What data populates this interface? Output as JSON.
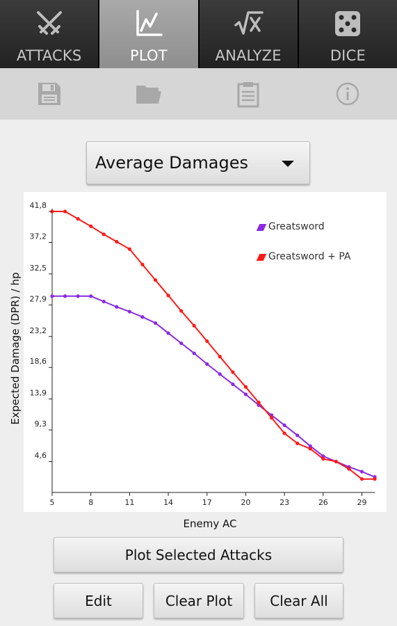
{
  "tabs": [
    {
      "label": "ATTACKS",
      "icon": "crossed-swords-icon",
      "active": false
    },
    {
      "label": "PLOT",
      "icon": "line-chart-icon",
      "active": true
    },
    {
      "label": "ANALYZE",
      "icon": "square-root-icon",
      "active": false
    },
    {
      "label": "DICE",
      "icon": "dice-icon",
      "active": false
    }
  ],
  "actions": [
    {
      "icon": "save-icon"
    },
    {
      "icon": "folder-icon"
    },
    {
      "icon": "clipboard-icon"
    },
    {
      "icon": "info-icon"
    }
  ],
  "dropdown": {
    "selected": "Average Damages"
  },
  "buttons": {
    "plot_selected": "Plot Selected Attacks",
    "edit": "Edit",
    "clear_plot": "Clear Plot",
    "clear_all": "Clear All"
  },
  "colors": {
    "series1": "#8a2be2",
    "series2": "#ff1a1a"
  },
  "chart_data": {
    "type": "line",
    "xlabel": "Enemy AC",
    "ylabel": "Expected Damage (DPR) / hp",
    "xlim": [
      5,
      30
    ],
    "ylim": [
      0,
      41.8
    ],
    "x_ticks": [
      "5",
      "8",
      "11",
      "14",
      "17",
      "20",
      "23",
      "26",
      "29"
    ],
    "y_ticks": [
      "4,6",
      "9,3",
      "13,9",
      "18,6",
      "23,2",
      "27,9",
      "32,5",
      "37,2",
      "41,8"
    ],
    "x": [
      5,
      6,
      7,
      8,
      9,
      10,
      11,
      12,
      13,
      14,
      15,
      16,
      17,
      18,
      19,
      20,
      21,
      22,
      23,
      24,
      25,
      26,
      27,
      28,
      29,
      30
    ],
    "series": [
      {
        "name": "Greatsword",
        "values": [
          29.2,
          29.2,
          29.2,
          29.2,
          28.4,
          27.6,
          26.9,
          26.1,
          25.2,
          23.7,
          22.2,
          20.7,
          19.1,
          17.6,
          16.1,
          14.6,
          13.0,
          11.5,
          10.0,
          8.5,
          6.9,
          5.4,
          4.6,
          3.8,
          3.1,
          2.3
        ]
      },
      {
        "name": "Greatsword + PA",
        "values": [
          41.8,
          41.8,
          40.7,
          39.6,
          38.4,
          37.3,
          36.2,
          33.9,
          31.6,
          29.3,
          27.0,
          24.8,
          22.5,
          20.2,
          17.9,
          15.7,
          13.4,
          11.1,
          8.8,
          7.3,
          6.5,
          5.0,
          4.6,
          3.5,
          2.0,
          2.0
        ]
      }
    ],
    "legend_position": "top-right",
    "grid": false
  }
}
